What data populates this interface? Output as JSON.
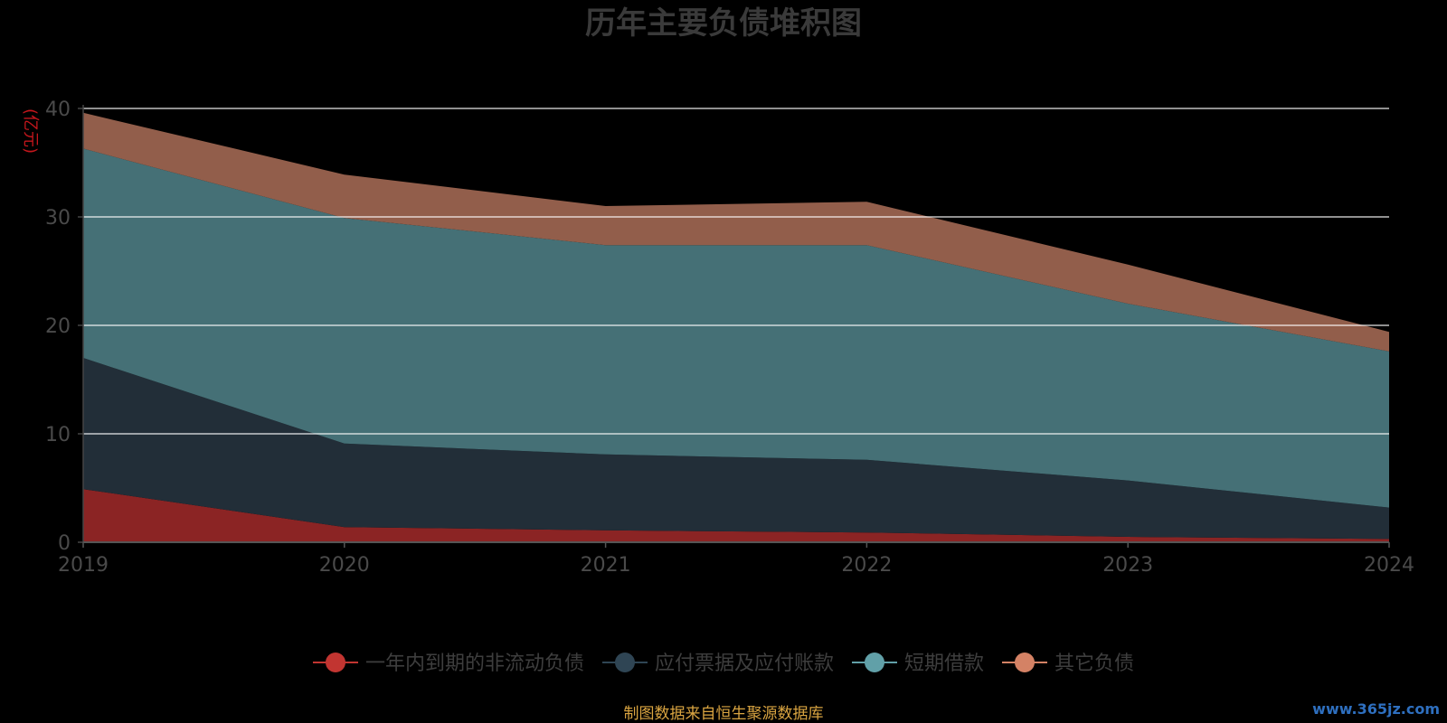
{
  "chart_data": {
    "type": "area",
    "stacked": true,
    "title": "历年主要负债堆积图",
    "ylabel": "(亿元)",
    "x": [
      "2019",
      "2020",
      "2021",
      "2022",
      "2023",
      "2024"
    ],
    "ylim": [
      0,
      40
    ],
    "yticks": [
      "0",
      "10",
      "20",
      "30",
      "40"
    ],
    "grid": true,
    "legend_position": "bottom",
    "series": [
      {
        "name": "一年内到期的非流动负债",
        "color": "#c23531",
        "area_color": "#8b2424",
        "values": [
          4.9,
          1.4,
          1.1,
          0.9,
          0.5,
          0.3
        ]
      },
      {
        "name": "应付票据及应付账款",
        "color": "#2f4554",
        "area_color": "#222e38",
        "values": [
          12.1,
          7.7,
          7.0,
          6.7,
          5.2,
          2.9
        ]
      },
      {
        "name": "短期借款",
        "color": "#61a0a8",
        "area_color": "#457076",
        "values": [
          19.3,
          20.8,
          19.3,
          19.8,
          16.3,
          14.4
        ]
      },
      {
        "name": "其它负债",
        "color": "#d48265",
        "area_color": "#925e4b",
        "values": [
          3.3,
          4.0,
          3.6,
          4.0,
          3.6,
          1.8
        ]
      }
    ]
  },
  "footer": {
    "source": "制图数据来自恒生聚源数据库",
    "watermark": "www.365jz.com"
  }
}
